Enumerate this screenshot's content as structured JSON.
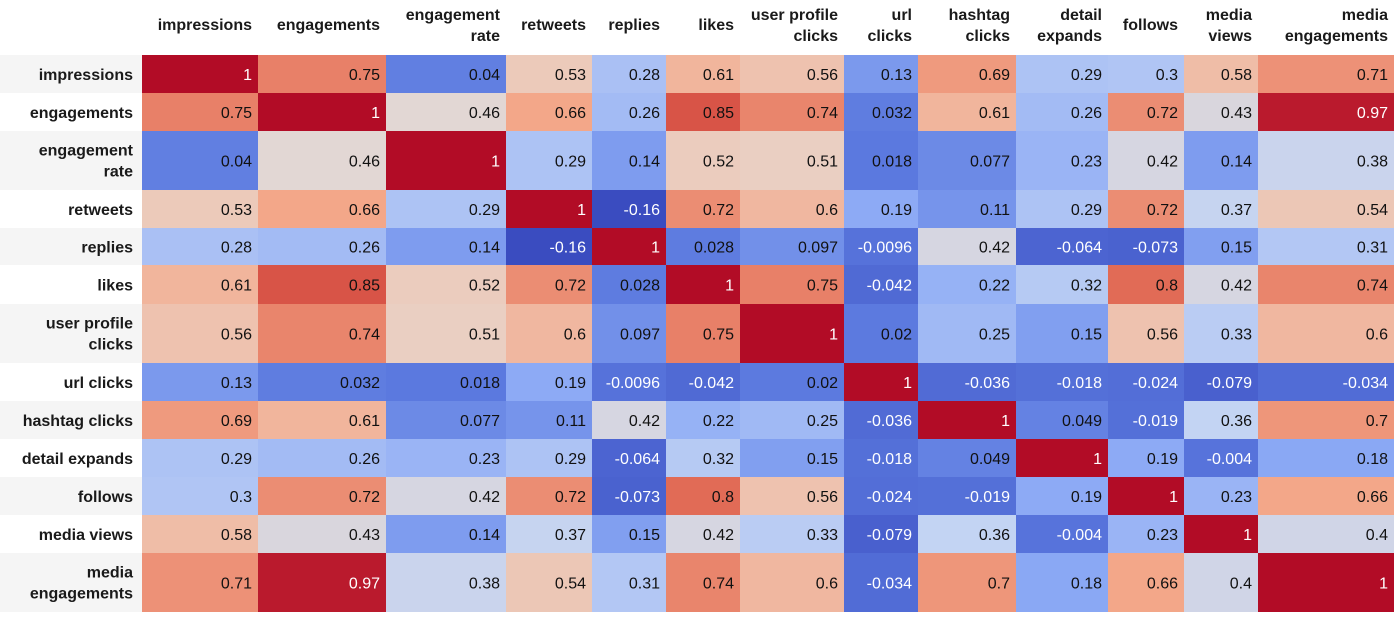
{
  "chart_data": {
    "type": "heatmap",
    "title": "",
    "colormap": "coolwarm",
    "color_range": [
      -0.16,
      1
    ],
    "columns": [
      [
        "impressions"
      ],
      [
        "engagements"
      ],
      [
        "engagement",
        "rate"
      ],
      [
        "retweets"
      ],
      [
        "replies"
      ],
      [
        "likes"
      ],
      [
        "user profile",
        "clicks"
      ],
      [
        "url",
        "clicks"
      ],
      [
        "hashtag",
        "clicks"
      ],
      [
        "detail",
        "expands"
      ],
      [
        "follows"
      ],
      [
        "media",
        "views"
      ],
      [
        "media",
        "engagements"
      ]
    ],
    "rows": [
      [
        "impressions"
      ],
      [
        "engagements"
      ],
      [
        "engagement",
        "rate"
      ],
      [
        "retweets"
      ],
      [
        "replies"
      ],
      [
        "likes"
      ],
      [
        "user profile",
        "clicks"
      ],
      [
        "url clicks"
      ],
      [
        "hashtag clicks"
      ],
      [
        "detail expands"
      ],
      [
        "follows"
      ],
      [
        "media views"
      ],
      [
        "media",
        "engagements"
      ]
    ],
    "values": [
      [
        1,
        0.75,
        0.04,
        0.53,
        0.28,
        0.61,
        0.56,
        0.13,
        0.69,
        0.29,
        0.3,
        0.58,
        0.71
      ],
      [
        0.75,
        1,
        0.46,
        0.66,
        0.26,
        0.85,
        0.74,
        0.032,
        0.61,
        0.26,
        0.72,
        0.43,
        0.97
      ],
      [
        0.04,
        0.46,
        1,
        0.29,
        0.14,
        0.52,
        0.51,
        0.018,
        0.077,
        0.23,
        0.42,
        0.14,
        0.38
      ],
      [
        0.53,
        0.66,
        0.29,
        1,
        -0.16,
        0.72,
        0.6,
        0.19,
        0.11,
        0.29,
        0.72,
        0.37,
        0.54
      ],
      [
        0.28,
        0.26,
        0.14,
        -0.16,
        1,
        0.028,
        0.097,
        -0.0096,
        0.42,
        -0.064,
        -0.073,
        0.15,
        0.31
      ],
      [
        0.61,
        0.85,
        0.52,
        0.72,
        0.028,
        1,
        0.75,
        -0.042,
        0.22,
        0.32,
        0.8,
        0.42,
        0.74
      ],
      [
        0.56,
        0.74,
        0.51,
        0.6,
        0.097,
        0.75,
        1,
        0.02,
        0.25,
        0.15,
        0.56,
        0.33,
        0.6
      ],
      [
        0.13,
        0.032,
        0.018,
        0.19,
        -0.0096,
        -0.042,
        0.02,
        1,
        -0.036,
        -0.018,
        -0.024,
        -0.079,
        -0.034
      ],
      [
        0.69,
        0.61,
        0.077,
        0.11,
        0.42,
        0.22,
        0.25,
        -0.036,
        1,
        0.049,
        -0.019,
        0.36,
        0.7
      ],
      [
        0.29,
        0.26,
        0.23,
        0.29,
        -0.064,
        0.32,
        0.15,
        -0.018,
        0.049,
        1,
        0.19,
        -0.004,
        0.18
      ],
      [
        0.3,
        0.72,
        0.42,
        0.72,
        -0.073,
        0.8,
        0.56,
        -0.024,
        -0.019,
        0.19,
        1,
        0.23,
        0.66
      ],
      [
        0.58,
        0.43,
        0.14,
        0.37,
        0.15,
        0.42,
        0.33,
        -0.079,
        0.36,
        -0.004,
        0.23,
        1,
        0.4
      ],
      [
        0.71,
        0.97,
        0.38,
        0.54,
        0.31,
        0.74,
        0.6,
        -0.034,
        0.7,
        0.18,
        0.66,
        0.4,
        1
      ]
    ],
    "value_labels": [
      [
        "1",
        "0.75",
        "0.04",
        "0.53",
        "0.28",
        "0.61",
        "0.56",
        "0.13",
        "0.69",
        "0.29",
        "0.3",
        "0.58",
        "0.71"
      ],
      [
        "0.75",
        "1",
        "0.46",
        "0.66",
        "0.26",
        "0.85",
        "0.74",
        "0.032",
        "0.61",
        "0.26",
        "0.72",
        "0.43",
        "0.97"
      ],
      [
        "0.04",
        "0.46",
        "1",
        "0.29",
        "0.14",
        "0.52",
        "0.51",
        "0.018",
        "0.077",
        "0.23",
        "0.42",
        "0.14",
        "0.38"
      ],
      [
        "0.53",
        "0.66",
        "0.29",
        "1",
        "-0.16",
        "0.72",
        "0.6",
        "0.19",
        "0.11",
        "0.29",
        "0.72",
        "0.37",
        "0.54"
      ],
      [
        "0.28",
        "0.26",
        "0.14",
        "-0.16",
        "1",
        "0.028",
        "0.097",
        "-0.0096",
        "0.42",
        "-0.064",
        "-0.073",
        "0.15",
        "0.31"
      ],
      [
        "0.61",
        "0.85",
        "0.52",
        "0.72",
        "0.028",
        "1",
        "0.75",
        "-0.042",
        "0.22",
        "0.32",
        "0.8",
        "0.42",
        "0.74"
      ],
      [
        "0.56",
        "0.74",
        "0.51",
        "0.6",
        "0.097",
        "0.75",
        "1",
        "0.02",
        "0.25",
        "0.15",
        "0.56",
        "0.33",
        "0.6"
      ],
      [
        "0.13",
        "0.032",
        "0.018",
        "0.19",
        "-0.0096",
        "-0.042",
        "0.02",
        "1",
        "-0.036",
        "-0.018",
        "-0.024",
        "-0.079",
        "-0.034"
      ],
      [
        "0.69",
        "0.61",
        "0.077",
        "0.11",
        "0.42",
        "0.22",
        "0.25",
        "-0.036",
        "1",
        "0.049",
        "-0.019",
        "0.36",
        "0.7"
      ],
      [
        "0.29",
        "0.26",
        "0.23",
        "0.29",
        "-0.064",
        "0.32",
        "0.15",
        "-0.018",
        "0.049",
        "1",
        "0.19",
        "-0.004",
        "0.18"
      ],
      [
        "0.3",
        "0.72",
        "0.42",
        "0.72",
        "-0.073",
        "0.8",
        "0.56",
        "-0.024",
        "-0.019",
        "0.19",
        "1",
        "0.23",
        "0.66"
      ],
      [
        "0.58",
        "0.43",
        "0.14",
        "0.37",
        "0.15",
        "0.42",
        "0.33",
        "-0.079",
        "0.36",
        "-0.004",
        "0.23",
        "1",
        "0.4"
      ],
      [
        "0.71",
        "0.97",
        "0.38",
        "0.54",
        "0.31",
        "0.74",
        "0.6",
        "-0.034",
        "0.7",
        "0.18",
        "0.66",
        "0.4",
        "1"
      ]
    ]
  }
}
